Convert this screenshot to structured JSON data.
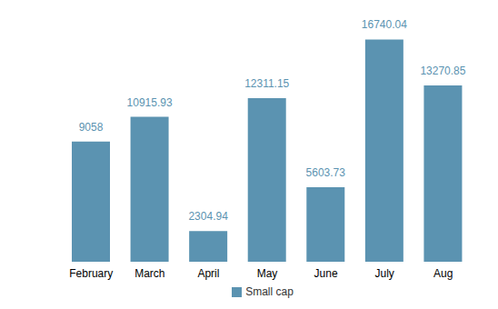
{
  "chart_data": {
    "type": "bar",
    "categories": [
      "February",
      "March",
      "April",
      "May",
      "June",
      "July",
      "Aug"
    ],
    "series": [
      {
        "name": "Small cap",
        "color": "#5b93b1",
        "values": [
          9058,
          10915.93,
          2304.94,
          12311.15,
          5603.73,
          16740.04,
          13270.85
        ]
      }
    ],
    "data_labels": true,
    "tick_labels": "x",
    "grid": false,
    "legend": "bottom"
  }
}
